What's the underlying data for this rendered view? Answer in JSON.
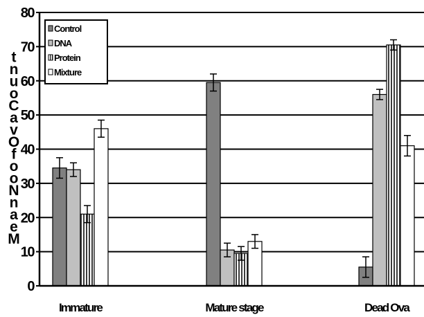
{
  "chart_data": {
    "type": "bar",
    "title": "",
    "ylabel": "Mean No of Ova Count",
    "xlabel": "",
    "categories": [
      "Immature",
      "Mature stage",
      "Dead Ova"
    ],
    "ylim": [
      0,
      80
    ],
    "yticks": [
      "0",
      "10",
      "20",
      "30",
      "40",
      "50",
      "60",
      "70",
      "80"
    ],
    "grid": true,
    "legend_position": "top-left",
    "series": [
      {
        "name": "Control",
        "values": [
          34.5,
          59.5,
          5.5
        ],
        "errors": [
          3,
          2.5,
          3
        ],
        "color": "#808080",
        "pattern": "solid"
      },
      {
        "name": "DNA",
        "values": [
          34,
          10.5,
          56
        ],
        "errors": [
          2,
          2,
          1.5
        ],
        "color": "#c0c0c0",
        "pattern": "solid"
      },
      {
        "name": "Protein",
        "values": [
          21,
          9.5,
          70.5
        ],
        "errors": [
          2.5,
          2,
          1.5
        ],
        "color": "#5a5a5a",
        "pattern": "vertical-stripes"
      },
      {
        "name": "Mixture",
        "values": [
          46,
          13,
          41
        ],
        "errors": [
          2.5,
          2,
          3
        ],
        "color": "#ffffff",
        "pattern": "solid"
      }
    ]
  }
}
